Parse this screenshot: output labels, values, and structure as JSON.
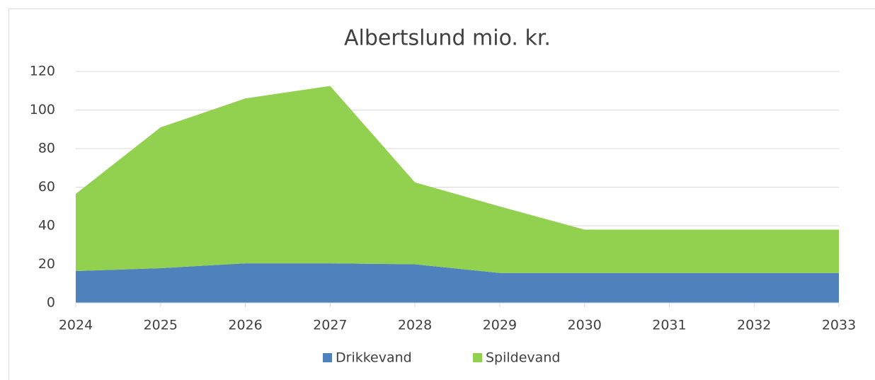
{
  "chart_data": {
    "type": "stacked_area",
    "title": "Albertslund mio. kr.",
    "categories": [
      "2024",
      "2025",
      "2026",
      "2027",
      "2028",
      "2029",
      "2030",
      "2031",
      "2032",
      "2033"
    ],
    "series": [
      {
        "name": "Drikkevand",
        "color": "#4f81bd",
        "values": [
          16.5,
          18,
          20.5,
          20.5,
          20,
          15.5,
          15.5,
          15.5,
          15.5,
          15.5
        ]
      },
      {
        "name": "Spildevand",
        "color": "#92d050",
        "values": [
          40,
          73,
          85.5,
          92,
          42.5,
          34.5,
          22.5,
          22.5,
          22.5,
          22.5
        ]
      }
    ],
    "ylim": [
      0,
      120
    ],
    "yticks": [
      0,
      20,
      40,
      60,
      80,
      100,
      120
    ],
    "grid": true,
    "legend": "bottom"
  }
}
